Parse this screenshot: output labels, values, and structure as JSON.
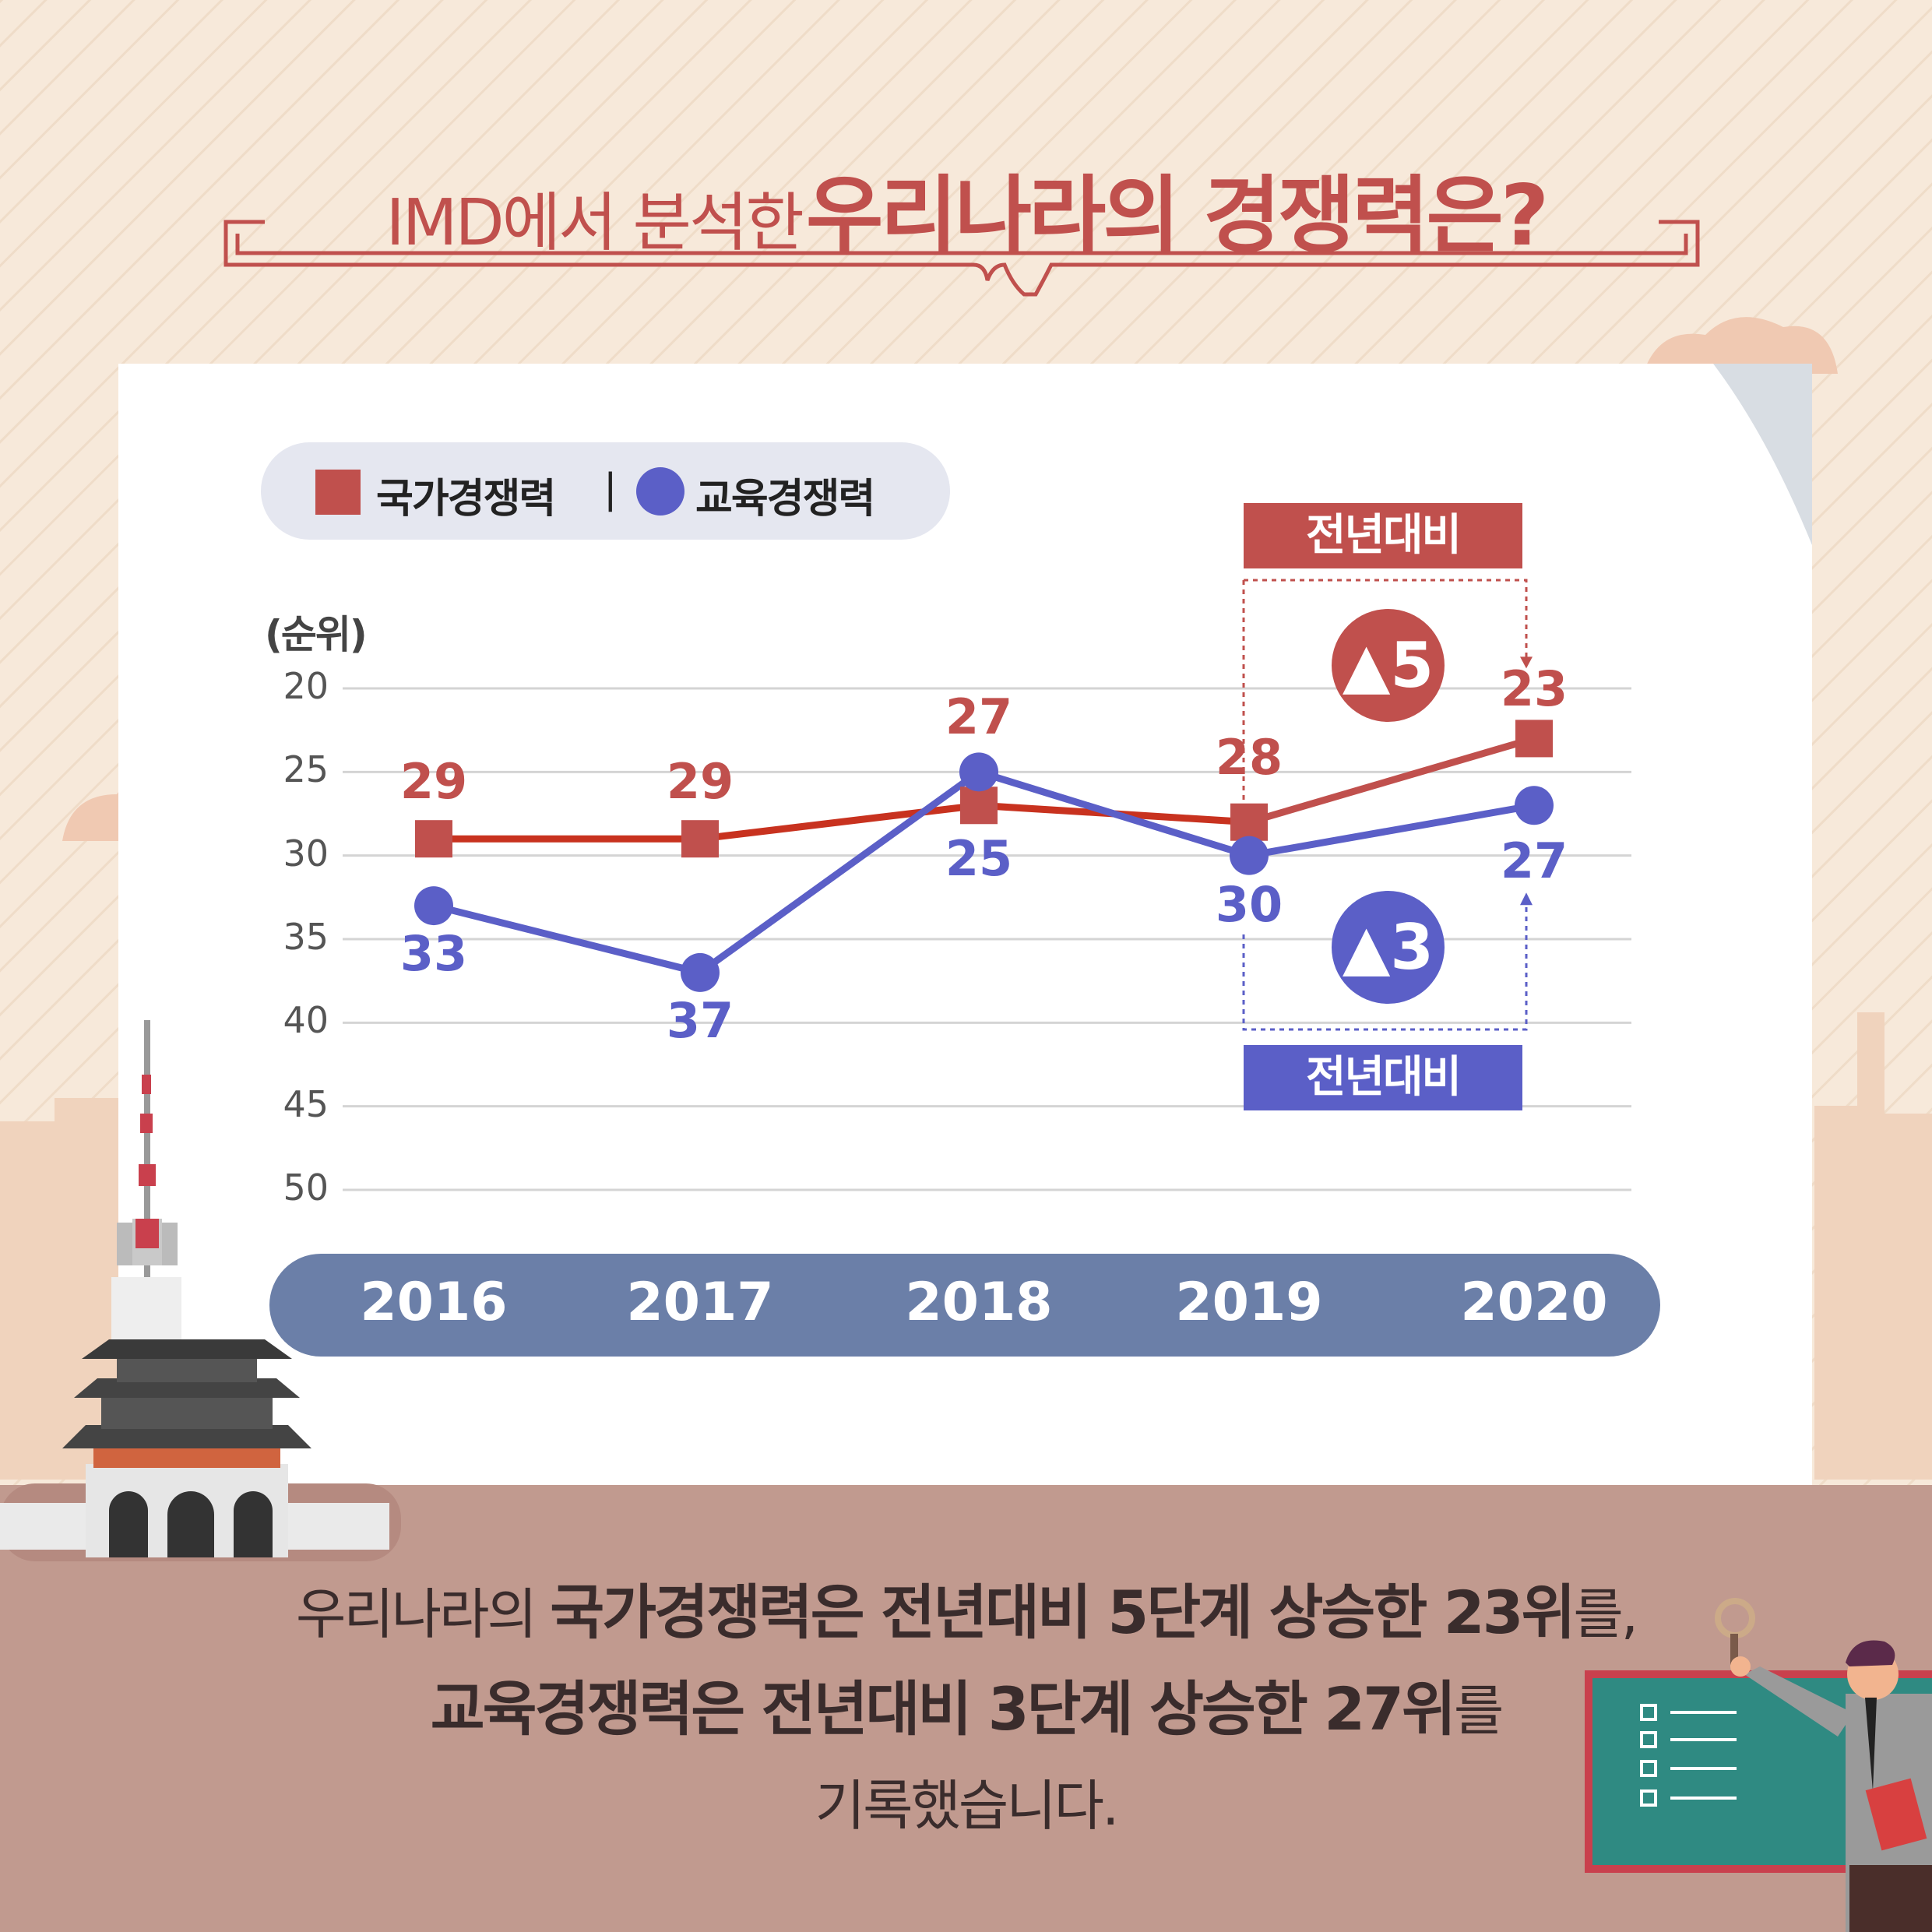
{
  "title": {
    "prefix": "IMD에서 분석한",
    "main": "우리나라의 경쟁력은?"
  },
  "legend": {
    "national_label": "국가경쟁력",
    "separator": "|",
    "education_label": "교육경쟁력"
  },
  "chart_data": {
    "type": "line",
    "ylabel": "(순위)",
    "y_reversed": true,
    "ylim": [
      20,
      50
    ],
    "yticks": [
      "20",
      "25",
      "30",
      "35",
      "40",
      "45",
      "50"
    ],
    "categories": [
      "2016",
      "2017",
      "2018",
      "2019",
      "2020"
    ],
    "series": [
      {
        "name": "국가경쟁력",
        "marker": "square",
        "color": "#c0504d",
        "values": [
          29,
          29,
          27,
          28,
          23
        ],
        "labels": [
          "29",
          "29",
          "27",
          "28",
          "23"
        ]
      },
      {
        "name": "교육경쟁력",
        "marker": "circle",
        "color": "#5b5fc7",
        "values": [
          33,
          37,
          25,
          30,
          27
        ],
        "labels": [
          "33",
          "37",
          "25",
          "30",
          "27"
        ]
      }
    ],
    "annotations": [
      {
        "series": "국가경쟁력",
        "tag": "전년대비",
        "change": "▲5",
        "color": "#c0504d"
      },
      {
        "series": "교육경쟁력",
        "tag": "전년대비",
        "change": "▲3",
        "color": "#5b5fc7"
      }
    ]
  },
  "summary": {
    "l1_a": "우리나라의 ",
    "l1_b": "국가경쟁력은 전년대비 5단계 상승한 23위",
    "l1_c": "를,",
    "l2_b": "교육경쟁력은 전년대비 3단계 상승한 27위",
    "l2_c": "를",
    "l3": "기록했습니다."
  },
  "colors": {
    "national": "#c0504d",
    "education": "#5b5fc7",
    "axis_bar": "#6b7fa8",
    "bottom_band": "#c19a8f",
    "background": "#f6e7d8"
  }
}
